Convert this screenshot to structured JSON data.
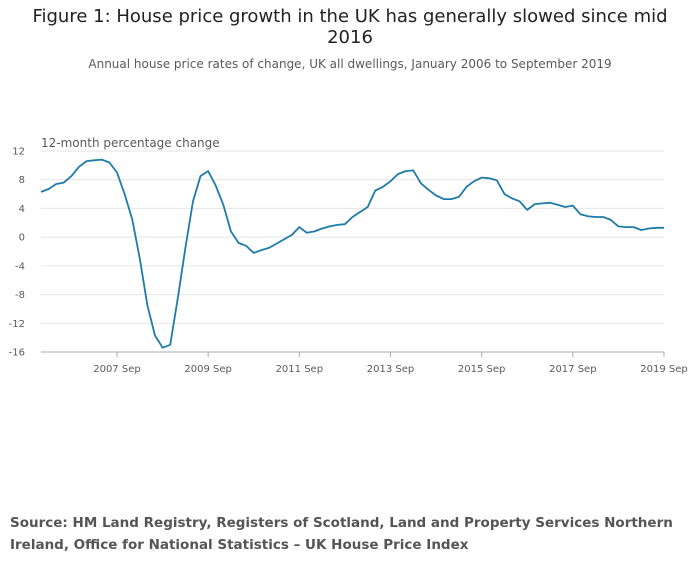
{
  "title_line1": "Figure 1: House price growth in the UK has generally slowed since mid",
  "title_line2": "2016",
  "subtitle": "Annual house price rates of change, UK all dwellings, January 2006 to September 2019",
  "source": "Source: HM Land Registry, Registers of Scotland, Land and Property Services Northern Ireland, Office for National Statistics – UK House Price Index",
  "colors": {
    "line": "#1f7ba8",
    "grid": "#e6e6e6",
    "axis": "#aaaaaa"
  },
  "chart_data": {
    "type": "line",
    "ylabel": "12-month percentage change",
    "ylim": [
      -16,
      12
    ],
    "yticks": [
      12,
      8,
      4,
      0,
      -4,
      -8,
      -12,
      -16
    ],
    "xlim": [
      "2006-01",
      "2019-09"
    ],
    "xticks": [
      {
        "date": "2007-09",
        "label": "2007 Sep"
      },
      {
        "date": "2009-09",
        "label": "2009 Sep"
      },
      {
        "date": "2011-09",
        "label": "2011 Sep"
      },
      {
        "date": "2013-09",
        "label": "2013 Sep"
      },
      {
        "date": "2015-09",
        "label": "2015 Sep"
      },
      {
        "date": "2017-09",
        "label": "2017 Sep"
      },
      {
        "date": "2019-09",
        "label": "2019 Sep"
      }
    ],
    "grid": true,
    "series": [
      {
        "x": [
          "2006-01",
          "2006-03",
          "2006-05",
          "2006-07",
          "2006-09",
          "2006-11",
          "2007-01",
          "2007-03",
          "2007-05",
          "2007-07",
          "2007-09",
          "2007-11",
          "2008-01",
          "2008-03",
          "2008-05",
          "2008-07",
          "2008-09",
          "2008-11",
          "2009-01",
          "2009-03",
          "2009-05",
          "2009-07",
          "2009-09",
          "2009-11",
          "2010-01",
          "2010-03",
          "2010-05",
          "2010-07",
          "2010-09",
          "2010-11",
          "2011-01",
          "2011-03",
          "2011-05",
          "2011-07",
          "2011-09",
          "2011-11",
          "2012-01",
          "2012-03",
          "2012-05",
          "2012-07",
          "2012-09",
          "2012-11",
          "2013-01",
          "2013-03",
          "2013-05",
          "2013-07",
          "2013-09",
          "2013-11",
          "2014-01",
          "2014-03",
          "2014-05",
          "2014-07",
          "2014-09",
          "2014-11",
          "2015-01",
          "2015-03",
          "2015-05",
          "2015-07",
          "2015-09",
          "2015-11",
          "2016-01",
          "2016-03",
          "2016-05",
          "2016-07",
          "2016-09",
          "2016-11",
          "2017-01",
          "2017-03",
          "2017-05",
          "2017-07",
          "2017-09",
          "2017-11",
          "2018-01",
          "2018-03",
          "2018-05",
          "2018-07",
          "2018-09",
          "2018-11",
          "2019-01",
          "2019-03",
          "2019-05",
          "2019-07",
          "2019-09"
        ],
        "y": [
          6.3,
          6.7,
          7.4,
          7.6,
          8.5,
          9.8,
          10.6,
          10.7,
          10.8,
          10.4,
          9.0,
          6.0,
          2.5,
          -3.0,
          -9.5,
          -13.7,
          -15.4,
          -15.0,
          -8.5,
          -1.5,
          5.0,
          8.5,
          9.2,
          7.2,
          4.5,
          0.8,
          -0.8,
          -1.2,
          -2.2,
          -1.8,
          -1.5,
          -0.9,
          -0.3,
          0.3,
          1.4,
          0.6,
          0.8,
          1.2,
          1.5,
          1.7,
          1.8,
          2.8,
          3.5,
          4.2,
          6.5,
          7.0,
          7.8,
          8.8,
          9.2,
          9.3,
          7.5,
          6.6,
          5.8,
          5.3,
          5.3,
          5.6,
          7.0,
          7.8,
          8.3,
          8.2,
          7.9,
          6.0,
          5.4,
          5.0,
          3.8,
          4.6,
          4.7,
          4.8,
          4.5,
          4.2,
          4.4,
          3.2,
          2.9,
          2.8,
          2.8,
          2.4,
          1.5,
          1.4,
          1.4,
          1.0,
          1.2,
          1.3,
          1.3
        ]
      }
    ]
  }
}
